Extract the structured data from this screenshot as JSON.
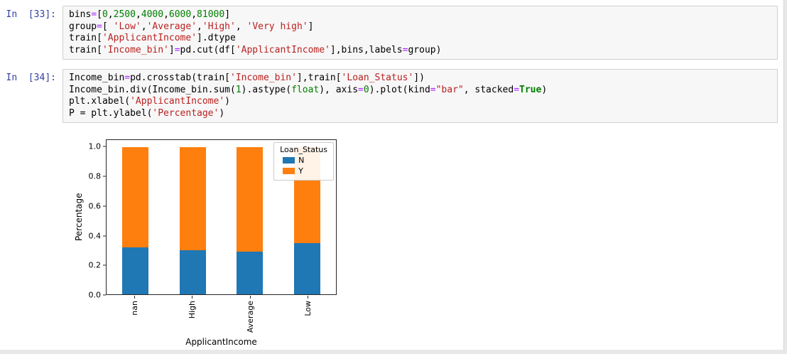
{
  "cells": [
    {
      "prompt": "In  [33]:",
      "code": [
        [
          [
            "p",
            "bins"
          ],
          [
            "o",
            "="
          ],
          [
            "p",
            "["
          ],
          [
            "n",
            "0"
          ],
          [
            "p",
            ","
          ],
          [
            "n",
            "2500"
          ],
          [
            "p",
            ","
          ],
          [
            "n",
            "4000"
          ],
          [
            "p",
            ","
          ],
          [
            "n",
            "6000"
          ],
          [
            "p",
            ","
          ],
          [
            "n",
            "81000"
          ],
          [
            "p",
            "]"
          ]
        ],
        [
          [
            "p",
            "group"
          ],
          [
            "o",
            "="
          ],
          [
            "p",
            "[ "
          ],
          [
            "s",
            "'Low'"
          ],
          [
            "p",
            ","
          ],
          [
            "s",
            "'Average'"
          ],
          [
            "p",
            ","
          ],
          [
            "s",
            "'High'"
          ],
          [
            "p",
            ", "
          ],
          [
            "s",
            "'Very high'"
          ],
          [
            "p",
            "]"
          ]
        ],
        [
          [
            "p",
            "train["
          ],
          [
            "s",
            "'ApplicantIncome'"
          ],
          [
            "p",
            "].dtype"
          ]
        ],
        [
          [
            "p",
            "train["
          ],
          [
            "s",
            "'Income_bin'"
          ],
          [
            "p",
            "]"
          ],
          [
            "o",
            "="
          ],
          [
            "p",
            "pd.cut(df["
          ],
          [
            "s",
            "'ApplicantIncome'"
          ],
          [
            "p",
            "],bins,labels"
          ],
          [
            "o",
            "="
          ],
          [
            "p",
            "group)"
          ]
        ]
      ]
    },
    {
      "prompt": "In  [34]:",
      "code": [
        [
          [
            "p",
            "Income_bin"
          ],
          [
            "o",
            "="
          ],
          [
            "p",
            "pd.crosstab(train["
          ],
          [
            "s",
            "'Income_bin'"
          ],
          [
            "p",
            "],train["
          ],
          [
            "s",
            "'Loan_Status'"
          ],
          [
            "p",
            "])"
          ]
        ],
        [
          [
            "p",
            "Income_bin.div(Income_bin.sum("
          ],
          [
            "n",
            "1"
          ],
          [
            "p",
            ").astype("
          ],
          [
            "b",
            "float"
          ],
          [
            "p",
            "), axis"
          ],
          [
            "o",
            "="
          ],
          [
            "n",
            "0"
          ],
          [
            "p",
            ").plot(kind"
          ],
          [
            "o",
            "="
          ],
          [
            "s",
            "\"bar\""
          ],
          [
            "p",
            ", stacked"
          ],
          [
            "o",
            "="
          ],
          [
            "k",
            "True"
          ],
          [
            "p",
            ")"
          ]
        ],
        [
          [
            "p",
            "plt.xlabel("
          ],
          [
            "s",
            "'ApplicantIncome'"
          ],
          [
            "p",
            ")"
          ]
        ],
        [
          [
            "p",
            "P = plt.ylabel("
          ],
          [
            "s",
            "'Percentage'"
          ],
          [
            "p",
            ")"
          ]
        ]
      ]
    }
  ],
  "chart_data": {
    "type": "bar",
    "stacked": true,
    "title": "",
    "xlabel": "ApplicantIncome",
    "ylabel": "Percentage",
    "categories": [
      "nan",
      "High",
      "Average",
      "Low"
    ],
    "series": [
      {
        "name": "N",
        "color": "#1f77b4",
        "values": [
          0.32,
          0.3,
          0.29,
          0.35
        ]
      },
      {
        "name": "Y",
        "color": "#ff7f0e",
        "values": [
          0.68,
          0.7,
          0.71,
          0.65
        ]
      }
    ],
    "ylim": [
      0,
      1.05
    ],
    "yticks": [
      0,
      0.2,
      0.4,
      0.6,
      0.8,
      1.0
    ],
    "legend": {
      "title": "Loan_Status",
      "position": "upper right"
    },
    "grid": false
  }
}
